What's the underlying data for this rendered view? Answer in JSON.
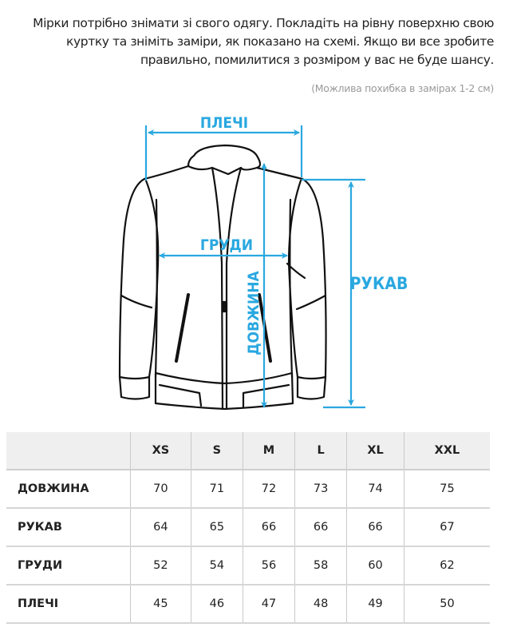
{
  "intro_text": "Мірки потрібно знімати зі свого одягу. Покладіть на рівну поверхню свою куртку та зніміть заміри, як показано на схемі. Якщо ви все зробите правильно, помилитися з розміром у вас не буде шансу.",
  "note": "(Можлива похибка в замірах 1-2 см)",
  "diagram": {
    "accent_color": "#2aa8e0",
    "labels": {
      "shoulders": "ПЛЕЧІ",
      "chest": "ГРУДИ",
      "length": "ДОВЖИНА",
      "sleeve": "РУКАВ"
    }
  },
  "size_table": {
    "headers": [
      "",
      "XS",
      "S",
      "M",
      "L",
      "XL",
      "XXL"
    ],
    "rows": [
      {
        "label": "ДОВЖИНА",
        "values": [
          "70",
          "71",
          "72",
          "73",
          "74",
          "75"
        ]
      },
      {
        "label": "РУКАВ",
        "values": [
          "64",
          "65",
          "66",
          "66",
          "66",
          "67"
        ]
      },
      {
        "label": "ГРУДИ",
        "values": [
          "52",
          "54",
          "56",
          "58",
          "60",
          "62"
        ]
      },
      {
        "label": "ПЛЕЧІ",
        "values": [
          "45",
          "46",
          "47",
          "48",
          "49",
          "50"
        ]
      }
    ]
  }
}
